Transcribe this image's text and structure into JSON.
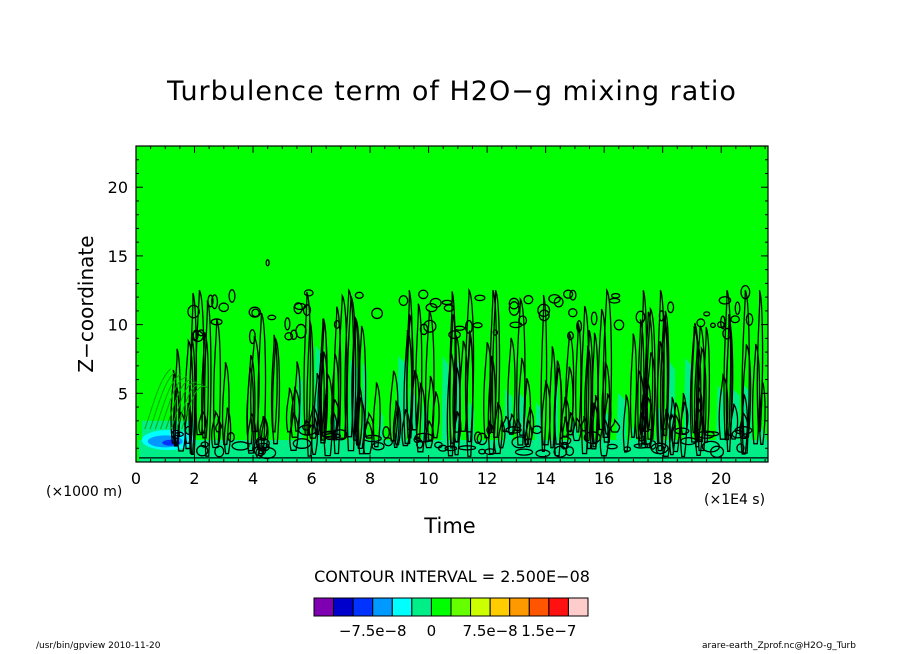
{
  "chart_data": {
    "type": "heatmap",
    "title": "Turbulence term of H2O−g mixing ratio",
    "xlabel": "Time",
    "ylabel": "Z−coordinate",
    "x_unit": "(×1E4 s)",
    "y_unit": "(×1000 m)",
    "xlim": [
      0,
      21.6
    ],
    "ylim": [
      0,
      23
    ],
    "xticks": [
      0,
      2,
      4,
      6,
      8,
      10,
      12,
      14,
      16,
      18,
      20
    ],
    "yticks": [
      5,
      10,
      15,
      20
    ],
    "contour_interval_text": "CONTOUR INTERVAL = 2.500E−08",
    "contour_interval": 2.5e-08,
    "background_value": 0,
    "colorbar": {
      "levels": [
        -1.25e-07,
        -1e-07,
        -7.5e-08,
        -5e-08,
        -2.5e-08,
        0,
        2.5e-08,
        5e-08,
        7.5e-08,
        1e-07,
        1.25e-07,
        1.5e-07,
        1.75e-07
      ],
      "colors": [
        "#7f00b2",
        "#0000cc",
        "#0033ff",
        "#0099ff",
        "#00ffff",
        "#00ee88",
        "#00ff00",
        "#66ff00",
        "#ccff00",
        "#ffcc00",
        "#ff9900",
        "#ff5500",
        "#ff1111",
        "#ffcccc"
      ],
      "tick_labels": [
        "−7.5e−8",
        "0",
        "7.5e−8",
        "1.5e−7"
      ]
    },
    "regions": [
      {
        "value": 0,
        "description_color": "#00ee88",
        "x": [
          0,
          21.6
        ],
        "z": [
          0,
          23
        ]
      },
      {
        "value": -2.5e-08,
        "x": [
          0.1,
          21.6
        ],
        "z": [
          0,
          3
        ]
      },
      {
        "value": -5e-08,
        "x": [
          0.1,
          2.0
        ],
        "z": [
          0.5,
          2.5
        ]
      },
      {
        "value": -1e-07,
        "x": [
          0.3,
          1.6
        ],
        "z": [
          0.8,
          2.0
        ]
      }
    ],
    "contour_extent_z_max": 14.5,
    "grid": false
  },
  "footer": {
    "left": "/usr/bin/gpview  2010-11-20",
    "right": "arare-earth_Zprof.nc@H2O-g_Turb"
  }
}
